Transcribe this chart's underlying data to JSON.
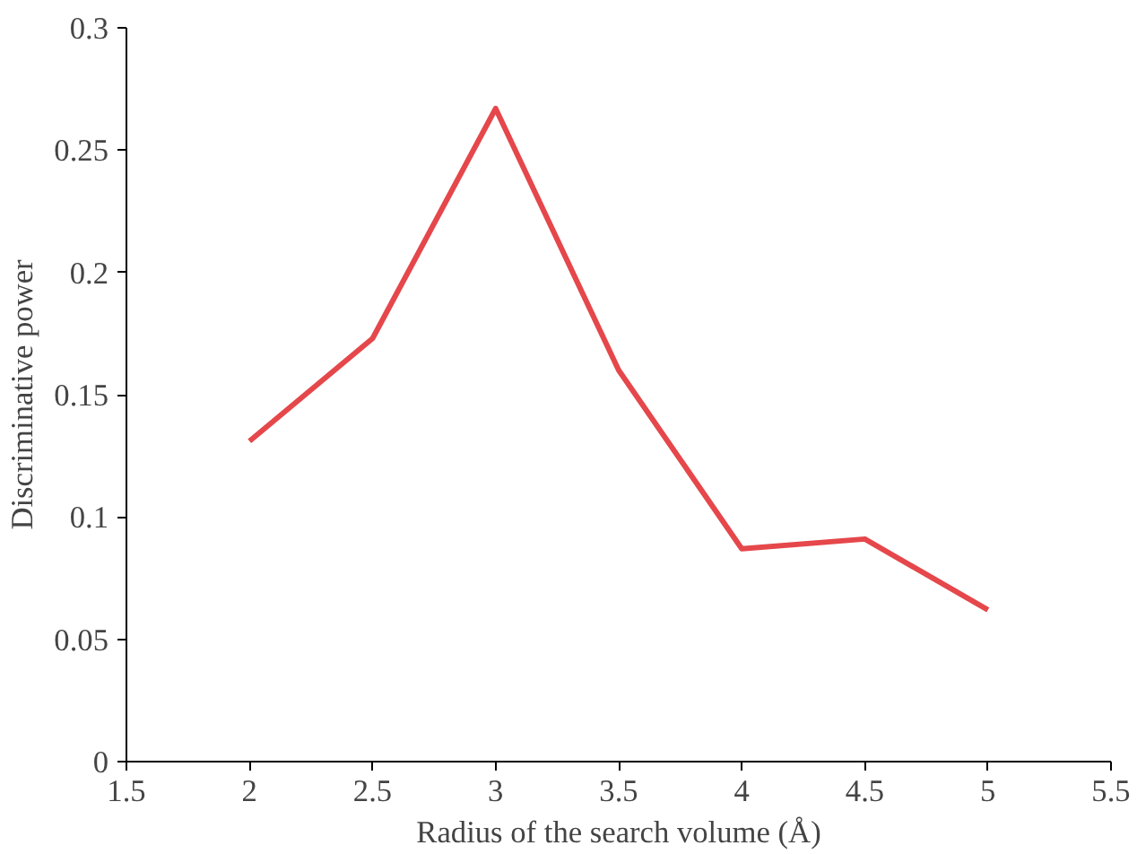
{
  "chart_data": {
    "type": "line",
    "xlabel": "Radius of the search volume (Å)",
    "ylabel": "Discriminative power",
    "x": [
      2,
      2.5,
      3,
      3.5,
      4,
      4.5,
      5
    ],
    "series": [
      {
        "color": "#e5474b",
        "values": [
          0.131,
          0.173,
          0.267,
          0.16,
          0.087,
          0.091,
          0.062
        ]
      }
    ],
    "xlim": [
      1.5,
      5.5
    ],
    "xticks": [
      1.5,
      2,
      2.5,
      3,
      3.5,
      4,
      4.5,
      5,
      5.5
    ],
    "ylim": [
      0,
      0.3
    ],
    "yticks": [
      0,
      0.05,
      0.1,
      0.15,
      0.2,
      0.25,
      0.3
    ],
    "grid": false,
    "marker": "none",
    "line_style": "solid"
  }
}
